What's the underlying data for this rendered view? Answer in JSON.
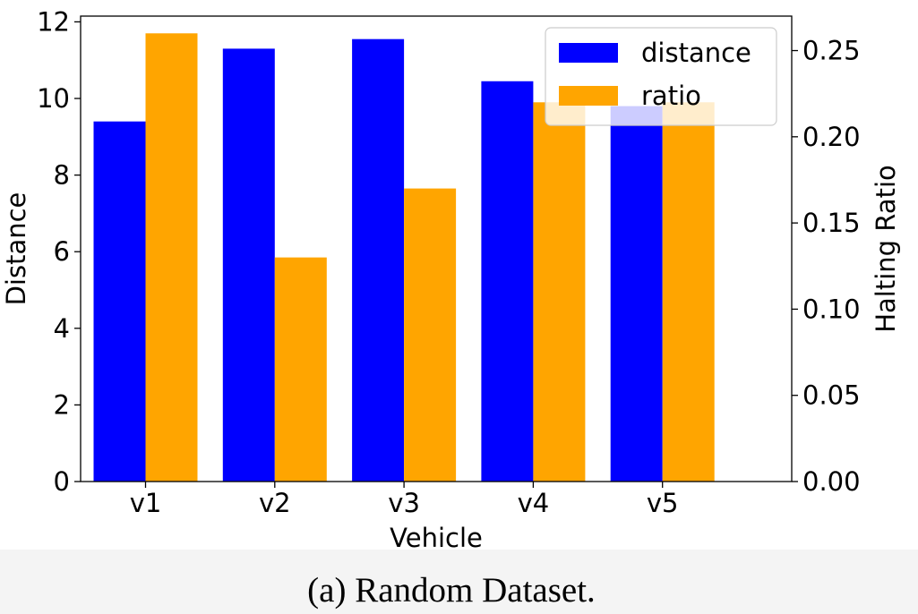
{
  "chart_data": {
    "type": "bar",
    "categories": [
      "v1",
      "v2",
      "v3",
      "v4",
      "v5"
    ],
    "series": [
      {
        "name": "distance",
        "axis": "left",
        "color": "#0000ff",
        "values": [
          9.4,
          11.3,
          11.55,
          10.45,
          9.8
        ]
      },
      {
        "name": "ratio",
        "axis": "right",
        "color": "#ffa500",
        "values": [
          0.26,
          0.13,
          0.17,
          0.22,
          0.22
        ]
      }
    ],
    "xlabel": "Vehicle",
    "ylabel": "Distance",
    "y2label": "Halting Ratio",
    "ylim": [
      0,
      12.15
    ],
    "y2lim": [
      0,
      0.27
    ],
    "yticks": [
      "0",
      "2",
      "4",
      "6",
      "8",
      "10",
      "12"
    ],
    "y2ticks": [
      "0.00",
      "0.05",
      "0.10",
      "0.15",
      "0.20",
      "0.25"
    ],
    "legend": {
      "placement": "top-right"
    },
    "grid": false
  },
  "caption": "(a) Random Dataset."
}
